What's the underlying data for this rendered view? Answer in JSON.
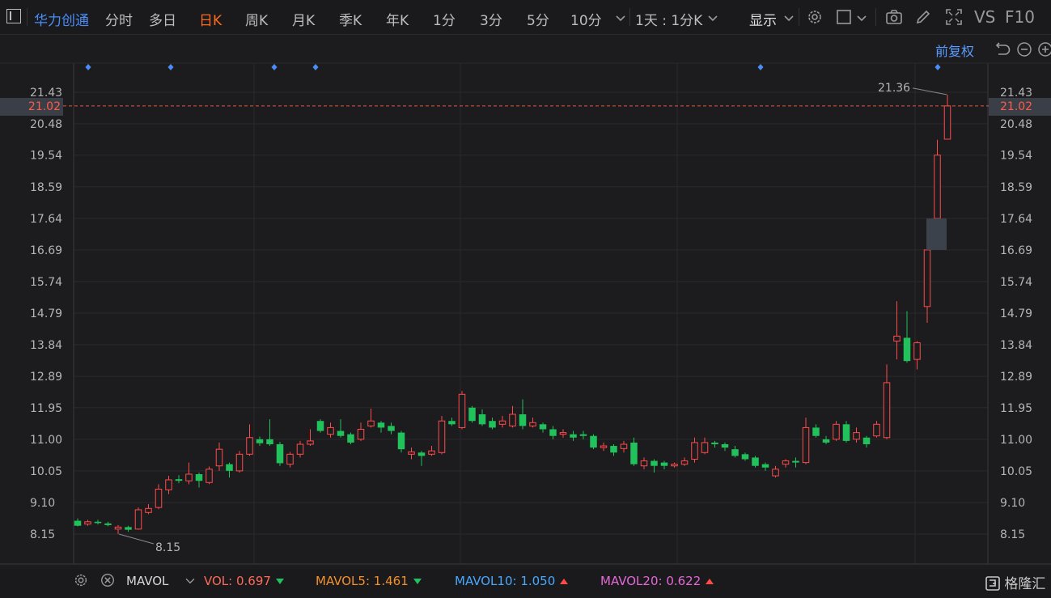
{
  "toolbar": {
    "stock_name": "华力创通",
    "tabs": [
      {
        "label": "分时",
        "active": false
      },
      {
        "label": "多日",
        "active": false
      },
      {
        "label": "日K",
        "active": true
      },
      {
        "label": "周K",
        "active": false
      },
      {
        "label": "月K",
        "active": false
      },
      {
        "label": "季K",
        "active": false
      },
      {
        "label": "年K",
        "active": false
      },
      {
        "label": "1分",
        "active": false
      },
      {
        "label": "3分",
        "active": false
      },
      {
        "label": "5分",
        "active": false
      },
      {
        "label": "10分",
        "active": false
      }
    ],
    "period_select": "1天 : 1分K",
    "display_label": "显示",
    "vs_label": "VS",
    "f10_label": "F10",
    "adjust_label": "前复权"
  },
  "axis": {
    "y_ticks": [
      "21.43",
      "20.48",
      "19.54",
      "18.59",
      "17.64",
      "16.69",
      "15.74",
      "14.79",
      "13.84",
      "12.89",
      "11.95",
      "11.00",
      "10.05",
      "9.10",
      "8.15"
    ],
    "current_price": "21.02",
    "high_label": "21.36",
    "low_label": "8.15"
  },
  "chart_data": {
    "type": "candlestick",
    "y_range": [
      7.4,
      22.3
    ],
    "current_price": 21.02,
    "annotations": [
      {
        "label": "21.36",
        "value": 21.36
      },
      {
        "label": "8.15",
        "value": 8.15
      }
    ],
    "candles": [
      [
        8.55,
        8.4,
        8.62,
        8.38
      ],
      [
        8.45,
        8.52,
        8.58,
        8.4
      ],
      [
        8.52,
        8.48,
        8.58,
        8.44
      ],
      [
        8.47,
        8.42,
        8.52,
        8.38
      ],
      [
        8.3,
        8.36,
        8.42,
        8.15
      ],
      [
        8.36,
        8.28,
        8.4,
        8.22
      ],
      [
        8.3,
        8.88,
        8.95,
        8.28
      ],
      [
        8.8,
        8.92,
        9.05,
        8.75
      ],
      [
        8.95,
        9.5,
        9.65,
        8.9
      ],
      [
        9.48,
        9.78,
        9.9,
        9.35
      ],
      [
        9.8,
        9.75,
        9.92,
        9.68
      ],
      [
        9.75,
        9.95,
        10.3,
        9.65
      ],
      [
        9.95,
        9.75,
        10.0,
        9.55
      ],
      [
        9.7,
        10.1,
        10.18,
        9.65
      ],
      [
        10.2,
        10.7,
        10.9,
        10.05
      ],
      [
        10.25,
        10.05,
        10.3,
        9.85
      ],
      [
        10.05,
        10.55,
        10.65,
        10.0
      ],
      [
        10.55,
        11.05,
        11.45,
        10.5
      ],
      [
        11.0,
        10.88,
        11.08,
        10.8
      ],
      [
        11.0,
        10.85,
        11.6,
        10.8
      ],
      [
        10.85,
        10.28,
        10.92,
        10.2
      ],
      [
        10.25,
        10.55,
        10.62,
        10.15
      ],
      [
        10.55,
        10.85,
        10.95,
        10.45
      ],
      [
        10.85,
        10.95,
        11.3,
        10.8
      ],
      [
        11.55,
        11.25,
        11.6,
        11.2
      ],
      [
        11.15,
        11.35,
        11.5,
        11.05
      ],
      [
        11.25,
        11.1,
        11.6,
        11.05
      ],
      [
        11.15,
        10.9,
        11.2,
        10.85
      ],
      [
        11.0,
        11.3,
        11.5,
        10.95
      ],
      [
        11.4,
        11.55,
        11.92,
        11.35
      ],
      [
        11.5,
        11.35,
        11.55,
        11.2
      ],
      [
        11.4,
        11.25,
        11.5,
        11.15
      ],
      [
        11.2,
        10.7,
        11.25,
        10.6
      ],
      [
        10.55,
        10.62,
        10.75,
        10.4
      ],
      [
        10.6,
        10.5,
        10.65,
        10.2
      ],
      [
        10.55,
        10.65,
        10.8,
        10.5
      ],
      [
        10.6,
        11.55,
        11.7,
        10.55
      ],
      [
        11.55,
        11.45,
        11.65,
        11.4
      ],
      [
        11.35,
        12.35,
        12.45,
        11.3
      ],
      [
        11.95,
        11.55,
        12.0,
        11.5
      ],
      [
        11.75,
        11.45,
        11.9,
        11.4
      ],
      [
        11.55,
        11.35,
        11.65,
        11.3
      ],
      [
        11.45,
        11.55,
        11.7,
        11.35
      ],
      [
        11.4,
        11.75,
        12.0,
        11.35
      ],
      [
        11.75,
        11.4,
        12.2,
        11.3
      ],
      [
        11.4,
        11.5,
        11.65,
        11.35
      ],
      [
        11.45,
        11.3,
        11.5,
        11.2
      ],
      [
        11.3,
        11.1,
        11.4,
        11.0
      ],
      [
        11.15,
        11.2,
        11.3,
        11.05
      ],
      [
        11.15,
        11.05,
        11.25,
        10.95
      ],
      [
        11.15,
        11.1,
        11.25,
        11.0
      ],
      [
        11.1,
        10.75,
        11.15,
        10.7
      ],
      [
        10.75,
        10.8,
        10.9,
        10.65
      ],
      [
        10.8,
        10.6,
        10.85,
        10.5
      ],
      [
        10.72,
        10.85,
        10.95,
        10.6
      ],
      [
        10.9,
        10.25,
        11.05,
        10.2
      ],
      [
        10.2,
        10.35,
        10.45,
        10.1
      ],
      [
        10.35,
        10.2,
        10.4,
        10.0
      ],
      [
        10.3,
        10.2,
        10.35,
        10.1
      ],
      [
        10.2,
        10.25,
        10.3,
        10.15
      ],
      [
        10.25,
        10.35,
        10.45,
        10.2
      ],
      [
        10.4,
        10.9,
        11.05,
        10.3
      ],
      [
        10.6,
        10.9,
        11.05,
        10.55
      ],
      [
        10.9,
        10.85,
        10.95,
        10.75
      ],
      [
        10.85,
        10.75,
        10.9,
        10.65
      ],
      [
        10.7,
        10.5,
        10.8,
        10.45
      ],
      [
        10.55,
        10.4,
        10.6,
        10.35
      ],
      [
        10.45,
        10.2,
        10.5,
        10.15
      ],
      [
        10.25,
        10.15,
        10.3,
        10.05
      ],
      [
        9.9,
        10.1,
        10.2,
        9.85
      ],
      [
        10.25,
        10.35,
        10.4,
        10.15
      ],
      [
        10.35,
        10.3,
        10.45,
        10.15
      ],
      [
        10.3,
        11.35,
        11.65,
        10.25
      ],
      [
        11.35,
        11.1,
        11.45,
        11.05
      ],
      [
        11.0,
        10.9,
        11.1,
        10.85
      ],
      [
        11.0,
        11.45,
        11.55,
        10.95
      ],
      [
        11.45,
        10.95,
        11.55,
        10.9
      ],
      [
        11.0,
        11.2,
        11.35,
        10.9
      ],
      [
        11.05,
        10.85,
        11.1,
        10.75
      ],
      [
        11.1,
        11.45,
        11.55,
        11.05
      ],
      [
        11.05,
        12.7,
        13.25,
        11.0
      ],
      [
        13.95,
        14.1,
        15.15,
        13.4
      ],
      [
        14.05,
        13.35,
        14.85,
        13.3
      ],
      [
        13.4,
        13.9,
        13.95,
        13.1
      ],
      [
        14.99,
        16.69,
        16.69,
        14.5
      ],
      [
        17.64,
        19.54,
        20.0,
        17.64
      ],
      [
        20.02,
        21.02,
        21.36,
        20.02
      ]
    ],
    "last_box": [
      16.69,
      17.64
    ]
  },
  "volume_bar": {
    "indicator_name": "MAVOL",
    "vol_label": "VOL:",
    "vol_value": "0.697",
    "mavol5_label": "MAVOL5:",
    "mavol5_value": "1.461",
    "mavol10_label": "MAVOL10:",
    "mavol10_value": "1.050",
    "mavol20_label": "MAVOL20:",
    "mavol20_value": "0.622",
    "watermark": "格隆汇"
  },
  "colors": {
    "up": "#ff4a4a",
    "down": "#21c15c",
    "accent": "#ff6a1a",
    "link": "#4a8df6"
  }
}
